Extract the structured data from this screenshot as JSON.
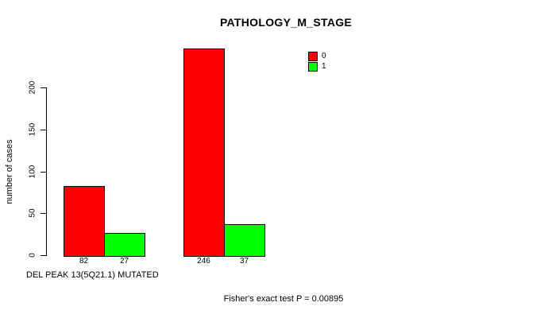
{
  "chart_data": {
    "type": "bar",
    "title": "PATHOLOGY_M_STAGE",
    "ylabel": "number of cases",
    "xlabel": "DEL PEAK 13(5Q21.1) MUTATED",
    "annotation": "Fisher's exact test P = 0.00895",
    "yticks": [
      0,
      50,
      100,
      150,
      200
    ],
    "ylim": [
      0,
      250
    ],
    "grid": false,
    "legend_position": "top-right",
    "legend": [
      {
        "label": "0",
        "color": "#ff0000"
      },
      {
        "label": "1",
        "color": "#00ff00"
      }
    ],
    "series": [
      {
        "name": "0",
        "color": "#ff0000",
        "values": [
          82,
          246
        ]
      },
      {
        "name": "1",
        "color": "#00ff00",
        "values": [
          27,
          37
        ]
      }
    ],
    "groups": [
      {
        "values": [
          82,
          27
        ]
      },
      {
        "values": [
          246,
          37
        ]
      }
    ],
    "bar_value_labels": [
      "82",
      "27",
      "246",
      "37"
    ],
    "colors": {
      "bar_border": "#000000",
      "axis": "#000000",
      "background": "#ffffff"
    }
  }
}
